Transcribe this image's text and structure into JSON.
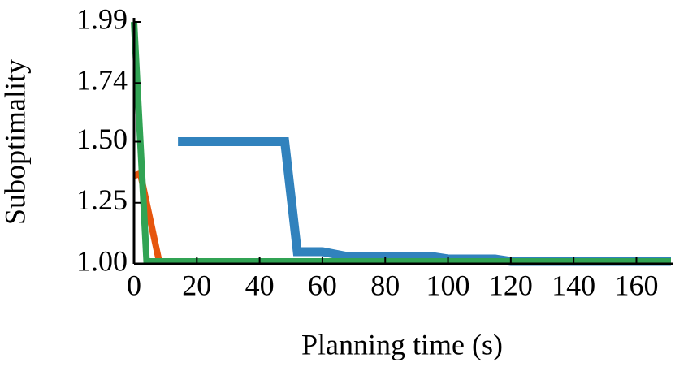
{
  "chart_data": {
    "type": "line",
    "x_label": "Planning time (s)",
    "y_label": "Suboptimality",
    "xlim": [
      0,
      171
    ],
    "ylim": [
      1.0,
      2.0
    ],
    "xticks": [
      0,
      20,
      40,
      60,
      80,
      100,
      120,
      140,
      160
    ],
    "yticks": [
      {
        "value": 1,
        "label": "1.00"
      },
      1.25,
      {
        "value": 1.5,
        "label": "1.50"
      },
      1.74,
      1.99
    ],
    "series": [
      {
        "color": "#e6550d",
        "x": [
          0,
          2,
          8,
          171
        ],
        "values": [
          1.36,
          1.37,
          1.01,
          1.01
        ]
      },
      {
        "color": "#3182bd",
        "x": [
          14,
          48,
          52,
          60,
          68,
          95,
          100,
          115,
          120,
          130,
          171
        ],
        "values": [
          1.5,
          1.5,
          1.05,
          1.05,
          1.03,
          1.03,
          1.02,
          1.02,
          1.01,
          1.01,
          1.01
        ]
      },
      {
        "color": "#31a354",
        "x": [
          0,
          4,
          171
        ],
        "values": [
          1.99,
          1.01,
          1.01
        ]
      }
    ]
  }
}
